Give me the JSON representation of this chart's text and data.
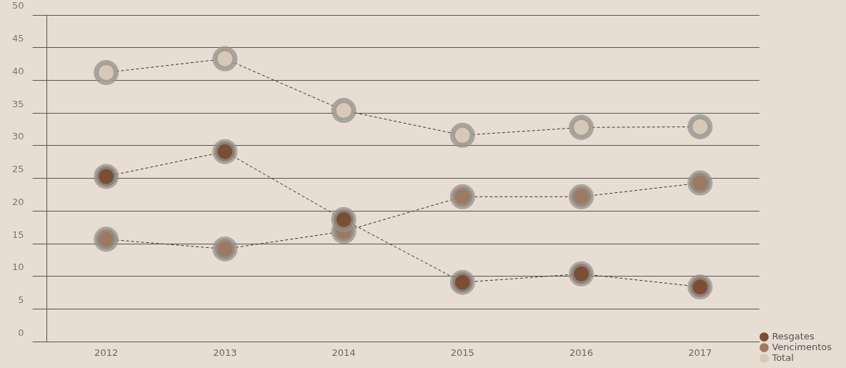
{
  "chart_data": {
    "type": "line",
    "categories": [
      "2012",
      "2013",
      "2014",
      "2015",
      "2016",
      "2017"
    ],
    "series": [
      {
        "name": "Resgates",
        "color": "#7a4f35",
        "values": [
          25.3,
          29.1,
          18.7,
          9.1,
          10.4,
          8.4
        ]
      },
      {
        "name": "Vencimentos",
        "color": "#9c7a62",
        "values": [
          15.7,
          14.2,
          16.9,
          22.2,
          22.2,
          24.3
        ]
      },
      {
        "name": "Total",
        "color": "#d8c8b8",
        "values": [
          41.2,
          43.3,
          35.4,
          31.6,
          32.8,
          32.9
        ]
      }
    ],
    "ylim": [
      0,
      50
    ],
    "yticks": [
      0,
      5,
      10,
      15,
      20,
      25,
      30,
      35,
      40,
      45,
      50
    ],
    "grid": "y",
    "legend": "bottom right",
    "marker": "circle",
    "line_style": "dashed"
  }
}
